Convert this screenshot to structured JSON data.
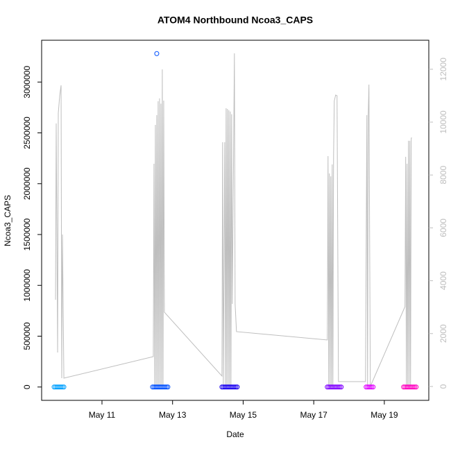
{
  "chart_data": {
    "type": "scatter",
    "title": "ATOM4 Northbound Ncoa3_CAPS",
    "x_label": "Date",
    "y_label": "Ncoa3_CAPS",
    "xlim": [
      9.29,
      20.26
    ],
    "xticks": [
      {
        "value": 11,
        "label": "May 11"
      },
      {
        "value": 13,
        "label": "May 13"
      },
      {
        "value": 15,
        "label": "May 15"
      },
      {
        "value": 17,
        "label": "May 17"
      },
      {
        "value": 19,
        "label": "May 19"
      }
    ],
    "ylim": [
      -131200,
      3411200
    ],
    "yticks": [
      0,
      500000,
      1000000,
      1500000,
      2000000,
      2500000,
      3000000
    ],
    "y2lim": [
      -525,
      13097
    ],
    "y2ticks": [
      0,
      2000,
      4000,
      6000,
      8000,
      10000,
      12000
    ],
    "y2_color": "#bdbdbd",
    "series": [
      {
        "type": "line",
        "axis": "y2",
        "color": "#bebebe",
        "x": [
          9.684,
          9.703,
          9.743,
          9.762,
          9.802,
          9.841,
          9.86,
          9.88,
          9.92,
          12.454,
          12.473,
          12.493,
          12.513,
          12.533,
          12.552,
          12.572,
          12.591,
          12.611,
          12.631,
          12.651,
          12.67,
          12.69,
          12.709,
          12.729,
          12.749,
          12.768,
          14.399,
          14.418,
          14.438,
          14.477,
          14.497,
          14.517,
          14.536,
          14.556,
          14.576,
          14.595,
          14.615,
          14.635,
          14.654,
          14.674,
          14.694,
          14.752,
          14.772,
          14.811,
          17.385,
          17.405,
          17.424,
          17.444,
          17.464,
          17.483,
          17.503,
          17.523,
          17.542,
          17.562,
          17.582,
          17.621,
          17.66,
          17.7,
          18.466,
          18.505,
          18.525,
          18.544,
          18.564,
          18.603,
          19.585,
          19.605,
          19.625,
          19.644,
          19.664,
          19.684,
          19.703,
          19.723,
          19.743,
          19.762,
          19.782
        ],
        "values": [
          3281,
          9949,
          1286,
          10343,
          11000,
          11393,
          315,
          5749,
          315,
          1129,
          8426,
          0,
          9896,
          0,
          10264,
          0,
          10790,
          0,
          10900,
          0,
          10700,
          0,
          11996,
          0,
          10815,
          2809,
          394,
          9240,
          0,
          9240,
          0,
          10526,
          0,
          10500,
          0,
          10450,
          0,
          10400,
          0,
          10300,
          3124,
          12600,
          3124,
          2074,
          1759,
          8715,
          0,
          8059,
          0,
          7950,
          0,
          8400,
          0,
          8715,
          10800,
          11025,
          11000,
          184,
          184,
          10264,
          0,
          10264,
          11419,
          0,
          3019,
          8689,
          0,
          8426,
          0,
          9293,
          0,
          9293,
          0,
          9400,
          9400
        ]
      },
      {
        "type": "scatter",
        "color": "#00a0ff",
        "x": [
          9.644,
          9.684,
          9.723,
          9.762,
          9.802,
          9.841,
          9.88,
          9.92
        ],
        "values": [
          0,
          0,
          0,
          0,
          0,
          0,
          0,
          0
        ]
      },
      {
        "type": "scatter",
        "color": "#0050ff",
        "x": [
          12.434,
          12.473,
          12.513,
          12.552,
          12.552,
          12.591,
          12.631,
          12.67,
          12.709,
          12.749,
          12.788,
          12.827,
          12.866
        ],
        "values": [
          0,
          0,
          0,
          3280000,
          0,
          0,
          0,
          0,
          0,
          0,
          0,
          0,
          0
        ]
      },
      {
        "type": "scatter",
        "color": "#1a00f0",
        "x": [
          14.399,
          14.438,
          14.477,
          14.517,
          14.556,
          14.595,
          14.635,
          14.674,
          14.713,
          14.752,
          14.792,
          14.831
        ],
        "values": [
          0,
          0,
          0,
          0,
          0,
          0,
          0,
          0,
          0,
          0,
          0,
          0
        ]
      },
      {
        "type": "scatter",
        "color": "#8000ff",
        "x": [
          17.385,
          17.424,
          17.464,
          17.503,
          17.542,
          17.582,
          17.621,
          17.66,
          17.7,
          17.739,
          17.778
        ],
        "values": [
          0,
          0,
          0,
          0,
          0,
          0,
          0,
          0,
          0,
          0,
          0
        ]
      },
      {
        "type": "scatter",
        "color": "#e000ff",
        "x": [
          18.485,
          18.525,
          18.564,
          18.603,
          18.642,
          18.682
        ],
        "values": [
          0,
          0,
          0,
          0,
          0,
          0
        ]
      },
      {
        "type": "scatter",
        "color": "#ff00c0",
        "x": [
          19.546,
          19.585,
          19.625,
          19.664,
          19.703,
          19.743,
          19.782,
          19.821,
          19.86,
          19.9
        ],
        "values": [
          0,
          0,
          0,
          0,
          0,
          0,
          0,
          0,
          0,
          0
        ]
      }
    ]
  }
}
